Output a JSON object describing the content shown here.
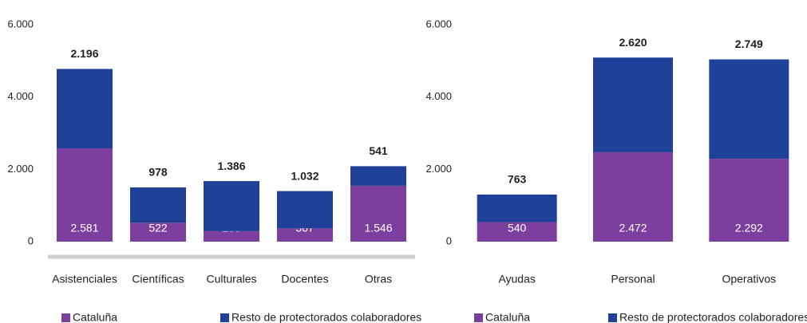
{
  "chart_data": [
    {
      "type": "bar",
      "stacked": true,
      "categories": [
        "Asistenciales",
        "Científicas",
        "Culturales",
        "Docentes",
        "Otras"
      ],
      "ylim": [
        0,
        6000
      ],
      "yticks": [
        0,
        {
          "value": 2000,
          "label": "2.000"
        },
        {
          "value": 4000,
          "label": "4.000"
        },
        {
          "value": 6000,
          "label": "6.000"
        }
      ],
      "series": [
        {
          "name": "Cataluña",
          "color": "#7d3f9d",
          "values": [
            2581,
            522,
            289,
            367,
            1546
          ],
          "value_labels": [
            "2.581",
            "522",
            "289",
            "367",
            "1.546"
          ]
        },
        {
          "name": "Resto de protectorados colaboradores",
          "color": "#1f4199",
          "values": [
            2196,
            978,
            1386,
            1032,
            541
          ],
          "value_labels": [
            "2.196",
            "978",
            "1.386",
            "1.032",
            "541"
          ]
        }
      ]
    },
    {
      "type": "bar",
      "stacked": true,
      "categories": [
        "Ayudas",
        "Personal",
        "Operativos"
      ],
      "ylim": [
        0,
        6000
      ],
      "yticks": [
        0,
        {
          "value": 2000,
          "label": "2.000"
        },
        {
          "value": 4000,
          "label": "4.000"
        },
        {
          "value": 6000,
          "label": "6.000"
        }
      ],
      "series": [
        {
          "name": "Cataluña",
          "color": "#7d3f9d",
          "values": [
            540,
            2472,
            2292
          ],
          "value_labels": [
            "540",
            "2.472",
            "2.292"
          ]
        },
        {
          "name": "Resto de protectorados colaboradores",
          "color": "#1f4199",
          "values": [
            763,
            2620,
            2749
          ],
          "value_labels": [
            "763",
            "2.620",
            "2.749"
          ]
        }
      ]
    }
  ]
}
